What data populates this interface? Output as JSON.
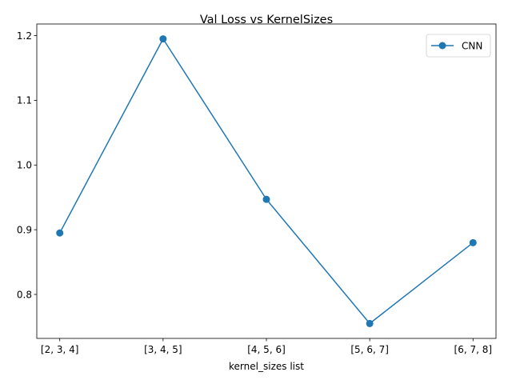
{
  "chart_data": {
    "type": "line",
    "title": "Val Loss vs KernelSizes",
    "xlabel": "kernel_sizes list",
    "ylabel": "",
    "categories": [
      "[2, 3, 4]",
      "[3, 4, 5]",
      "[4, 5, 6]",
      "[5, 6, 7]",
      "[6, 7, 8]"
    ],
    "series": [
      {
        "name": "CNN",
        "values": [
          0.895,
          1.195,
          0.947,
          0.755,
          0.88
        ],
        "color": "#1f77b4",
        "marker": "circle"
      }
    ],
    "ylim": [
      0.732,
      1.218
    ],
    "yticks": [
      0.8,
      0.9,
      1.0,
      1.1,
      1.2
    ],
    "ytick_labels": [
      "0.8",
      "0.9",
      "1.0",
      "1.1",
      "1.2"
    ],
    "grid": false,
    "legend_position": "top-right"
  }
}
